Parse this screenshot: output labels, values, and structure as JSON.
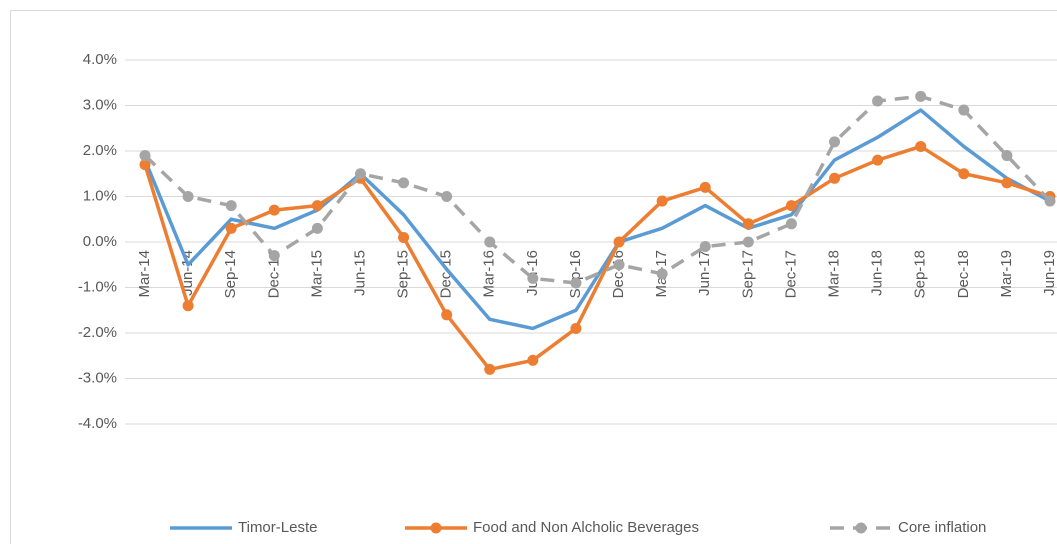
{
  "chart_data": {
    "type": "line",
    "categories": [
      "Mar-14",
      "Jun-14",
      "Sep-14",
      "Dec-14",
      "Mar-15",
      "Jun-15",
      "Sep-15",
      "Dec-15",
      "Mar-16",
      "Jun-16",
      "Sep-16",
      "Dec-16",
      "Mar-17",
      "Jun-17",
      "Sep-17",
      "Dec-17",
      "Mar-18",
      "Jun-18",
      "Sep-18",
      "Dec-18",
      "Mar-19",
      "Jun-19"
    ],
    "series": [
      {
        "name": "Timor-Leste",
        "color": "#5b9bd5",
        "marker": false,
        "dashed": false,
        "values": [
          1.8,
          -0.5,
          0.5,
          0.3,
          0.7,
          1.5,
          0.6,
          -0.6,
          -1.7,
          -1.9,
          -1.5,
          0.0,
          0.3,
          0.8,
          0.3,
          0.6,
          1.8,
          2.3,
          2.9,
          2.1,
          1.4,
          0.9
        ]
      },
      {
        "name": "Food and Non Alcholic Beverages",
        "color": "#ed7d31",
        "marker": true,
        "dashed": false,
        "values": [
          1.7,
          -1.4,
          0.3,
          0.7,
          0.8,
          1.4,
          0.1,
          -1.6,
          -2.8,
          -2.6,
          -1.9,
          0.0,
          0.9,
          1.2,
          0.4,
          0.8,
          1.4,
          1.8,
          2.1,
          1.5,
          1.3,
          1.0
        ]
      },
      {
        "name": "Core inflation",
        "color": "#a5a5a5",
        "marker": true,
        "dashed": true,
        "values": [
          1.9,
          1.0,
          0.8,
          -0.3,
          0.3,
          1.5,
          1.3,
          1.0,
          0.0,
          -0.8,
          -0.9,
          -0.5,
          -0.7,
          -0.1,
          0.0,
          0.4,
          2.2,
          3.1,
          3.2,
          2.9,
          1.9,
          0.9
        ]
      }
    ],
    "ylim": [
      -4,
      4
    ],
    "yticks": [
      {
        "value": -4,
        "label": "-4.0%"
      },
      {
        "value": -3,
        "label": "-3.0%"
      },
      {
        "value": -2,
        "label": "-2.0%"
      },
      {
        "value": -1,
        "label": "-1.0%"
      },
      {
        "value": 0,
        "label": "0.0%"
      },
      {
        "value": 1,
        "label": "1.0%"
      },
      {
        "value": 2,
        "label": "2.0%"
      },
      {
        "value": 3,
        "label": "3.0%"
      },
      {
        "value": 4,
        "label": "4.0%"
      }
    ],
    "grid": true,
    "legend": "bottom"
  }
}
